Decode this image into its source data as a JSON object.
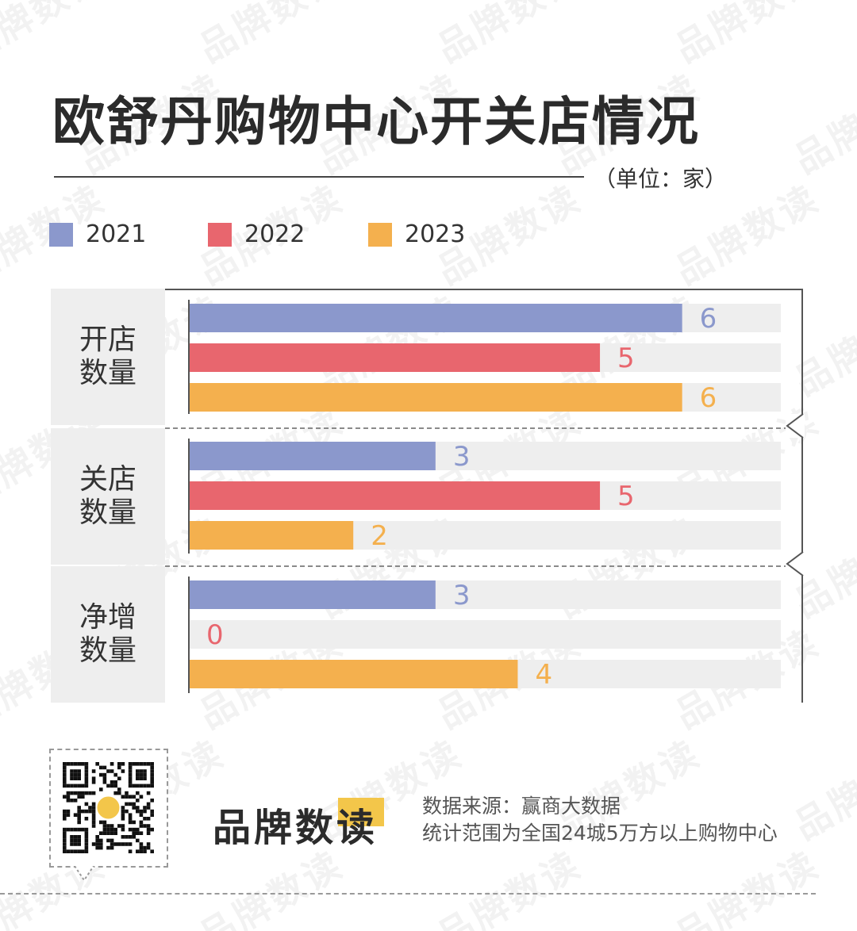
{
  "watermark": "品牌数读",
  "header": {
    "title": "欧舒丹购物中心开关店情况",
    "unit": "（单位：家）"
  },
  "colors": {
    "2021": "#8b98cc",
    "2022": "#e8666e",
    "2023": "#f4b04e",
    "track": "#eeeeee"
  },
  "chart_data": {
    "type": "bar",
    "orientation": "horizontal",
    "title": "欧舒丹购物中心开关店情况",
    "unit": "（单位：家）",
    "categories": [
      "开店数量",
      "关店数量",
      "净增数量"
    ],
    "series": [
      {
        "name": "2021",
        "color": "#8b98cc",
        "values": [
          6,
          3,
          3
        ]
      },
      {
        "name": "2022",
        "color": "#e8666e",
        "values": [
          5,
          5,
          0
        ]
      },
      {
        "name": "2023",
        "color": "#f4b04e",
        "values": [
          6,
          2,
          4
        ]
      }
    ],
    "xlim": [
      0,
      7.2
    ],
    "legend": "top",
    "grid": false
  },
  "footer": {
    "brand": "品牌数读",
    "qr_badge": "品牌数读",
    "source_line1": "数据来源：赢商大数据",
    "source_line2": "统计范围为全国24城5万方以上购物中心"
  }
}
